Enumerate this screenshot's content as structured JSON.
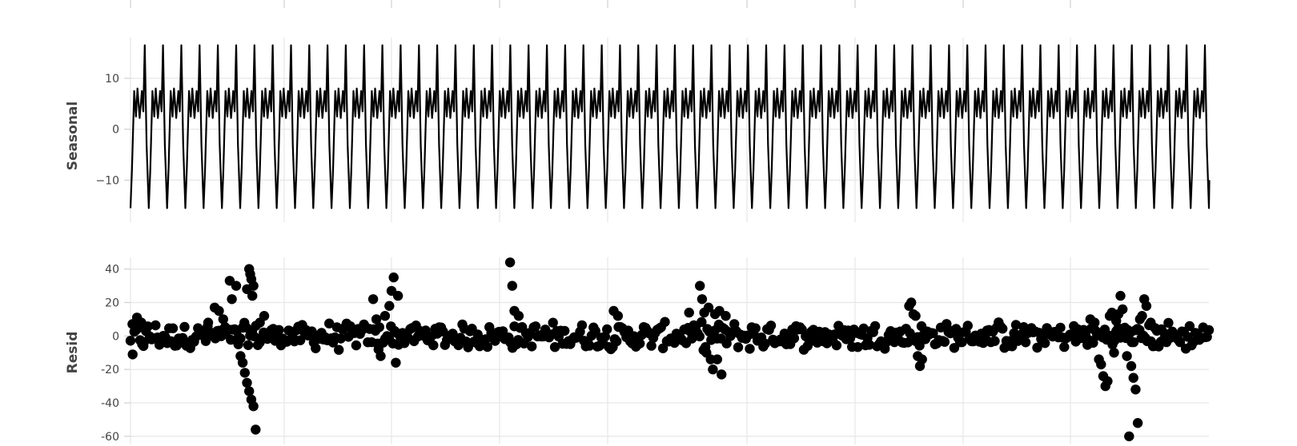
{
  "chart_data": [
    {
      "type": "line",
      "ylabel": "Seasonal",
      "ylim": [
        -17,
        18
      ],
      "yticks": [
        10,
        0,
        -10
      ],
      "ytick_labels": [
        "10",
        "0",
        "−10"
      ],
      "grid": true,
      "cycles": 59,
      "cycle_pattern": {
        "t": [
          0,
          0.08,
          0.2,
          0.3,
          0.38,
          0.5,
          0.62,
          0.7,
          0.78,
          0.88,
          1
        ],
        "y": [
          -15.5,
          -8,
          7.5,
          2.5,
          8,
          2.2,
          7.5,
          3.5,
          16.5,
          -3,
          -15.5
        ]
      },
      "series": [
        {
          "color": "#000000"
        }
      ]
    },
    {
      "type": "scatter",
      "ylabel": "Resid",
      "ylim": [
        -61,
        47
      ],
      "yticks": [
        40,
        20,
        0,
        -20,
        -40,
        -60
      ],
      "ytick_labels": [
        "40",
        "20",
        "0",
        "-20",
        "-40",
        "-60"
      ],
      "grid": true,
      "x_range": [
        0,
        1000
      ],
      "series": [
        {
          "color": "#000000",
          "baseline_points": 560,
          "points": [
            [
              2,
              -11
            ],
            [
              6,
              11
            ],
            [
              10,
              8
            ],
            [
              12,
              -6
            ],
            [
              14,
              5
            ],
            [
              68,
              3
            ],
            [
              72,
              8
            ],
            [
              78,
              17
            ],
            [
              82,
              15
            ],
            [
              86,
              10
            ],
            [
              92,
              33
            ],
            [
              94,
              22
            ],
            [
              98,
              30
            ],
            [
              100,
              -5
            ],
            [
              102,
              -12
            ],
            [
              104,
              -16
            ],
            [
              106,
              -22
            ],
            [
              108,
              -28
            ],
            [
              110,
              -33
            ],
            [
              112,
              -38
            ],
            [
              114,
              -42
            ],
            [
              108,
              28
            ],
            [
              110,
              40
            ],
            [
              111,
              37
            ],
            [
              112,
              34
            ],
            [
              113,
              24
            ],
            [
              114,
              30
            ],
            [
              116,
              -56
            ],
            [
              120,
              8
            ],
            [
              124,
              12
            ],
            [
              225,
              22
            ],
            [
              228,
              10
            ],
            [
              230,
              -8
            ],
            [
              232,
              -12
            ],
            [
              236,
              12
            ],
            [
              240,
              18
            ],
            [
              242,
              27
            ],
            [
              244,
              35
            ],
            [
              246,
              -16
            ],
            [
              248,
              24
            ],
            [
              352,
              44
            ],
            [
              354,
              30
            ],
            [
              356,
              15
            ],
            [
              358,
              -5
            ],
            [
              360,
              12
            ],
            [
              448,
              15
            ],
            [
              452,
              12
            ],
            [
              518,
              14
            ],
            [
              528,
              30
            ],
            [
              530,
              22
            ],
            [
              532,
              14
            ],
            [
              534,
              -10
            ],
            [
              536,
              17
            ],
            [
              538,
              -14
            ],
            [
              540,
              -20
            ],
            [
              542,
              13
            ],
            [
              544,
              -14
            ],
            [
              546,
              15
            ],
            [
              548,
              -23
            ],
            [
              552,
              12
            ],
            [
              722,
              18
            ],
            [
              724,
              20
            ],
            [
              726,
              13
            ],
            [
              728,
              12
            ],
            [
              730,
              -12
            ],
            [
              732,
              -18
            ],
            [
              734,
              -14
            ],
            [
              890,
              10
            ],
            [
              894,
              8
            ],
            [
              898,
              -14
            ],
            [
              900,
              -17
            ],
            [
              902,
              -24
            ],
            [
              904,
              -30
            ],
            [
              906,
              -27
            ],
            [
              908,
              12
            ],
            [
              910,
              14
            ],
            [
              912,
              -10
            ],
            [
              914,
              9
            ],
            [
              916,
              13
            ],
            [
              918,
              24
            ],
            [
              920,
              16
            ],
            [
              922,
              5
            ],
            [
              924,
              -12
            ],
            [
              926,
              -60
            ],
            [
              928,
              -18
            ],
            [
              930,
              -25
            ],
            [
              932,
              -32
            ],
            [
              934,
              -52
            ],
            [
              936,
              10
            ],
            [
              938,
              12
            ],
            [
              940,
              22
            ],
            [
              942,
              18
            ],
            [
              944,
              -3
            ],
            [
              946,
              8
            ],
            [
              950,
              -6
            ],
            [
              956,
              4
            ]
          ]
        }
      ]
    }
  ]
}
